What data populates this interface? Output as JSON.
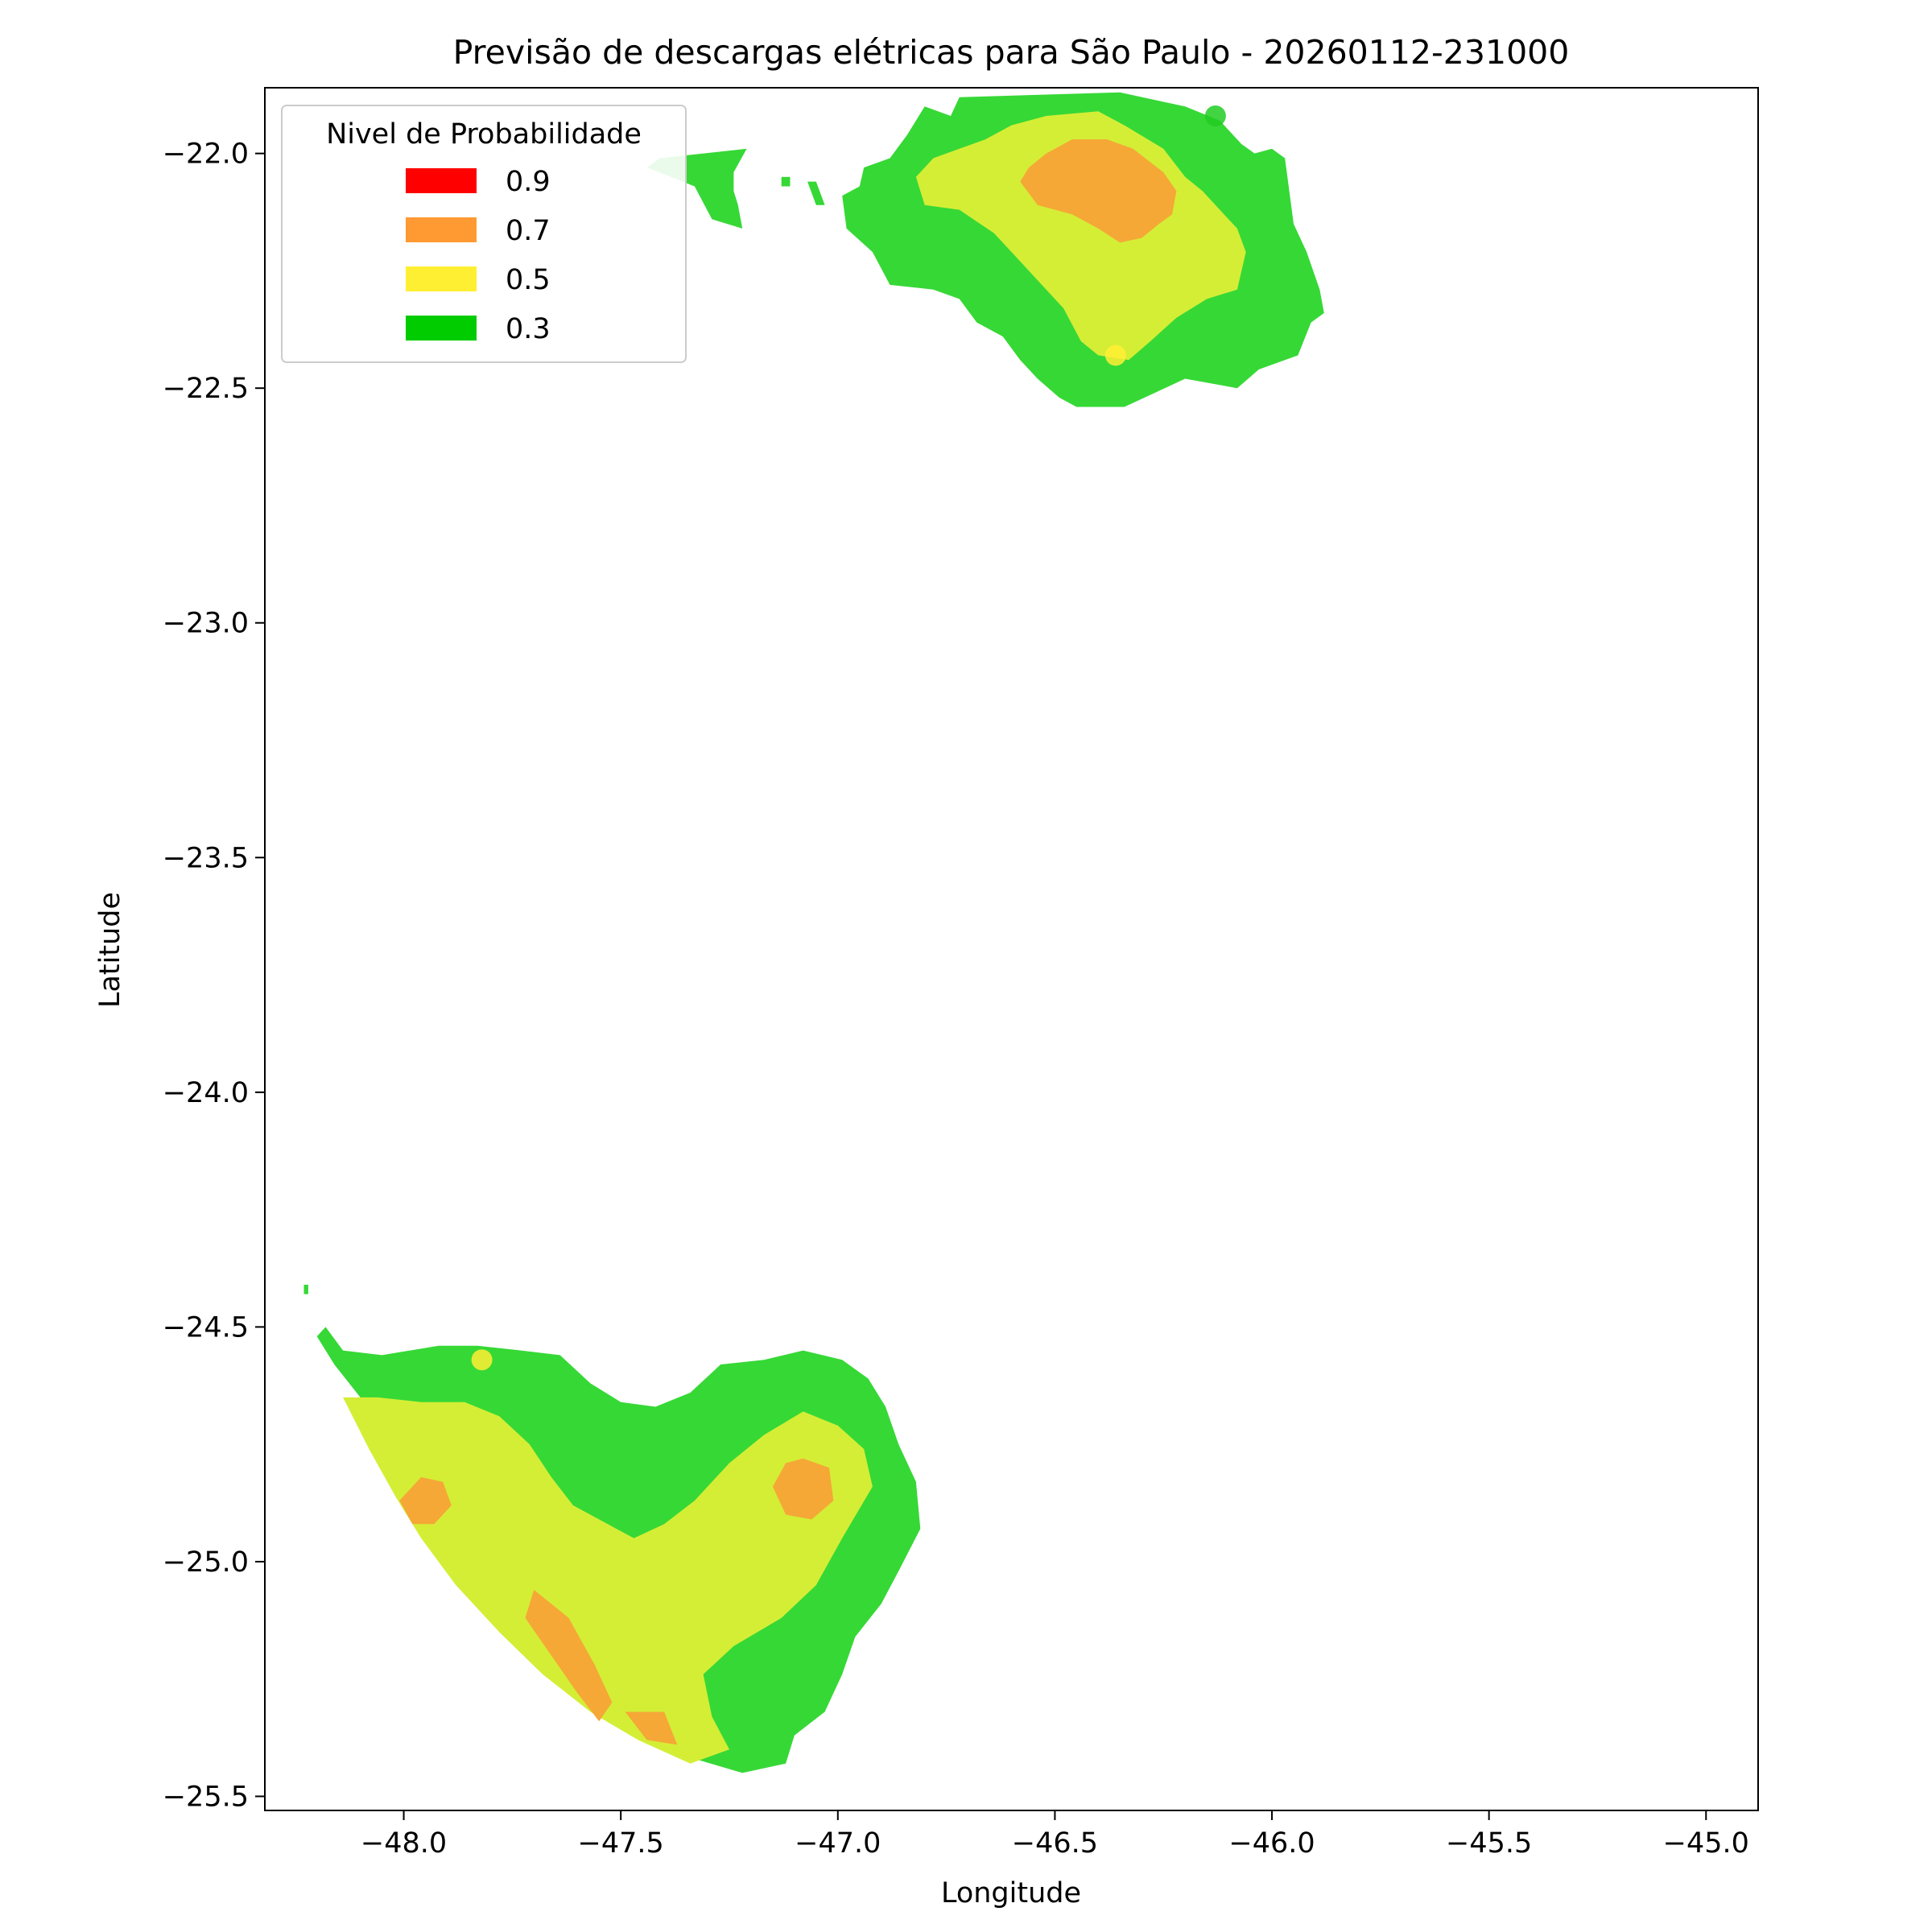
{
  "chart_data": {
    "type": "contour-map",
    "title": "Previsão de descargas elétricas para São Paulo - 20260112-231000",
    "xlabel": "Longitude",
    "ylabel": "Latitude",
    "xlim": [
      -48.32,
      -44.88
    ],
    "ylim": [
      -25.53,
      -21.86
    ],
    "x_ticks": [
      -48.0,
      -47.5,
      -47.0,
      -46.5,
      -46.0,
      -45.5,
      -45.0
    ],
    "x_tick_labels": [
      "−48.0",
      "−47.5",
      "−47.0",
      "−46.5",
      "−46.0",
      "−45.5",
      "−45.0"
    ],
    "y_ticks": [
      -22.0,
      -22.5,
      -23.0,
      -23.5,
      -24.0,
      -24.5,
      -25.0,
      -25.5
    ],
    "y_tick_labels": [
      "−22.0",
      "−22.5",
      "−23.0",
      "−23.5",
      "−24.0",
      "−24.5",
      "−25.0",
      "−25.5"
    ],
    "grid": false,
    "legend": {
      "title": "Nivel de Probabilidade",
      "placement": "upper-left",
      "entries": [
        {
          "label": "0.9",
          "color": "#ff0000"
        },
        {
          "label": "0.7",
          "color": "#ff9a33"
        },
        {
          "label": "0.5",
          "color": "#ffef33"
        },
        {
          "label": "0.3",
          "color": "#00cc00"
        }
      ]
    },
    "fill_colors": {
      "0.3": "#36d836",
      "0.5": "#d4ee36",
      "0.7": "#f5a836"
    },
    "regions": [
      {
        "name": "north-cluster",
        "levels": [
          {
            "level": "0.3",
            "polygon": [
              [
                -47.24,
                -22.04
              ],
              [
                -47.21,
                -21.99
              ],
              [
                -47.41,
                -22.01
              ],
              [
                -47.44,
                -22.03
              ],
              [
                -47.33,
                -22.07
              ],
              [
                -47.29,
                -22.14
              ],
              [
                -47.22,
                -22.16
              ],
              [
                -47.23,
                -22.11
              ],
              [
                -47.24,
                -22.08
              ]
            ]
          },
          {
            "level": "0.3",
            "polygon": [
              [
                -46.95,
                -22.07
              ],
              [
                -46.94,
                -22.03
              ],
              [
                -46.88,
                -22.01
              ],
              [
                -46.84,
                -21.96
              ],
              [
                -46.8,
                -21.9
              ],
              [
                -46.74,
                -21.92
              ],
              [
                -46.72,
                -21.88
              ],
              [
                -46.35,
                -21.87
              ],
              [
                -46.2,
                -21.9
              ],
              [
                -46.12,
                -21.93
              ],
              [
                -46.07,
                -21.98
              ],
              [
                -46.04,
                -22.0
              ],
              [
                -46.0,
                -21.99
              ],
              [
                -45.97,
                -22.01
              ],
              [
                -45.95,
                -22.15
              ],
              [
                -45.92,
                -22.21
              ],
              [
                -45.89,
                -22.29
              ],
              [
                -45.88,
                -22.34
              ],
              [
                -45.91,
                -22.36
              ],
              [
                -45.94,
                -22.43
              ],
              [
                -46.03,
                -22.46
              ],
              [
                -46.08,
                -22.5
              ],
              [
                -46.2,
                -22.48
              ],
              [
                -46.27,
                -22.51
              ],
              [
                -46.34,
                -22.54
              ],
              [
                -46.45,
                -22.54
              ],
              [
                -46.49,
                -22.52
              ],
              [
                -46.54,
                -22.48
              ],
              [
                -46.58,
                -22.44
              ],
              [
                -46.62,
                -22.39
              ],
              [
                -46.68,
                -22.36
              ],
              [
                -46.72,
                -22.31
              ],
              [
                -46.78,
                -22.29
              ],
              [
                -46.88,
                -22.28
              ],
              [
                -46.92,
                -22.21
              ],
              [
                -46.98,
                -22.16
              ],
              [
                -46.99,
                -22.09
              ]
            ]
          },
          {
            "level": "0.3",
            "polygon": [
              [
                -47.13,
                -22.05
              ],
              [
                -47.11,
                -22.05
              ],
              [
                -47.11,
                -22.07
              ],
              [
                -47.13,
                -22.07
              ]
            ]
          },
          {
            "level": "0.3",
            "polygon": [
              [
                -47.07,
                -22.06
              ],
              [
                -47.05,
                -22.06
              ],
              [
                -47.03,
                -22.11
              ],
              [
                -47.05,
                -22.11
              ]
            ]
          },
          {
            "level": "0.5",
            "polygon": [
              [
                -46.82,
                -22.05
              ],
              [
                -46.78,
                -22.01
              ],
              [
                -46.72,
                -21.99
              ],
              [
                -46.66,
                -21.97
              ],
              [
                -46.6,
                -21.94
              ],
              [
                -46.52,
                -21.92
              ],
              [
                -46.4,
                -21.91
              ],
              [
                -46.34,
                -21.94
              ],
              [
                -46.25,
                -21.99
              ],
              [
                -46.2,
                -22.05
              ],
              [
                -46.16,
                -22.08
              ],
              [
                -46.12,
                -22.12
              ],
              [
                -46.08,
                -22.16
              ],
              [
                -46.06,
                -22.21
              ],
              [
                -46.08,
                -22.29
              ],
              [
                -46.15,
                -22.31
              ],
              [
                -46.22,
                -22.35
              ],
              [
                -46.28,
                -22.4
              ],
              [
                -46.33,
                -22.44
              ],
              [
                -46.4,
                -22.43
              ],
              [
                -46.44,
                -22.4
              ],
              [
                -46.48,
                -22.33
              ],
              [
                -46.54,
                -22.27
              ],
              [
                -46.59,
                -22.22
              ],
              [
                -46.64,
                -22.17
              ],
              [
                -46.72,
                -22.12
              ],
              [
                -46.8,
                -22.11
              ]
            ]
          },
          {
            "level": "0.7",
            "polygon": [
              [
                -46.56,
                -22.03
              ],
              [
                -46.52,
                -22.0
              ],
              [
                -46.46,
                -21.97
              ],
              [
                -46.38,
                -21.97
              ],
              [
                -46.32,
                -21.99
              ],
              [
                -46.25,
                -22.04
              ],
              [
                -46.22,
                -22.08
              ],
              [
                -46.23,
                -22.13
              ],
              [
                -46.26,
                -22.15
              ],
              [
                -46.3,
                -22.18
              ],
              [
                -46.35,
                -22.19
              ],
              [
                -46.4,
                -22.16
              ],
              [
                -46.46,
                -22.13
              ],
              [
                -46.54,
                -22.11
              ],
              [
                -46.58,
                -22.06
              ]
            ]
          }
        ]
      },
      {
        "name": "south-cluster",
        "levels": [
          {
            "level": "0.3",
            "polygon": [
              [
                -48.2,
                -24.52
              ],
              [
                -48.16,
                -24.58
              ],
              [
                -48.1,
                -24.65
              ],
              [
                -48.05,
                -24.74
              ],
              [
                -48.0,
                -24.82
              ],
              [
                -47.93,
                -24.93
              ],
              [
                -47.85,
                -25.03
              ],
              [
                -47.75,
                -25.14
              ],
              [
                -47.65,
                -25.23
              ],
              [
                -47.55,
                -25.31
              ],
              [
                -47.44,
                -25.37
              ],
              [
                -47.33,
                -25.42
              ],
              [
                -47.22,
                -25.45
              ],
              [
                -47.12,
                -25.43
              ],
              [
                -47.1,
                -25.37
              ],
              [
                -47.03,
                -25.32
              ],
              [
                -46.99,
                -25.24
              ],
              [
                -46.96,
                -25.16
              ],
              [
                -46.9,
                -25.09
              ],
              [
                -46.86,
                -25.02
              ],
              [
                -46.81,
                -24.93
              ],
              [
                -46.82,
                -24.83
              ],
              [
                -46.86,
                -24.75
              ],
              [
                -46.89,
                -24.67
              ],
              [
                -46.93,
                -24.61
              ],
              [
                -46.99,
                -24.57
              ],
              [
                -47.08,
                -24.55
              ],
              [
                -47.17,
                -24.57
              ],
              [
                -47.27,
                -24.58
              ],
              [
                -47.34,
                -24.64
              ],
              [
                -47.42,
                -24.67
              ],
              [
                -47.5,
                -24.66
              ],
              [
                -47.57,
                -24.62
              ],
              [
                -47.64,
                -24.56
              ],
              [
                -47.73,
                -24.55
              ],
              [
                -47.83,
                -24.54
              ],
              [
                -47.92,
                -24.54
              ],
              [
                -48.05,
                -24.56
              ],
              [
                -48.14,
                -24.55
              ],
              [
                -48.18,
                -24.5
              ]
            ]
          },
          {
            "level": "0.3",
            "polygon": [
              [
                -48.23,
                -24.41
              ],
              [
                -48.22,
                -24.41
              ],
              [
                -48.22,
                -24.43
              ],
              [
                -48.23,
                -24.43
              ]
            ]
          },
          {
            "level": "0.5",
            "polygon": [
              [
                -48.14,
                -24.65
              ],
              [
                -48.08,
                -24.76
              ],
              [
                -48.02,
                -24.86
              ],
              [
                -47.96,
                -24.95
              ],
              [
                -47.88,
                -25.05
              ],
              [
                -47.78,
                -25.15
              ],
              [
                -47.68,
                -25.24
              ],
              [
                -47.57,
                -25.32
              ],
              [
                -47.46,
                -25.38
              ],
              [
                -47.34,
                -25.43
              ],
              [
                -47.25,
                -25.4
              ],
              [
                -47.29,
                -25.33
              ],
              [
                -47.31,
                -25.24
              ],
              [
                -47.24,
                -25.18
              ],
              [
                -47.13,
                -25.12
              ],
              [
                -47.05,
                -25.05
              ],
              [
                -46.99,
                -24.95
              ],
              [
                -46.92,
                -24.84
              ],
              [
                -46.94,
                -24.76
              ],
              [
                -47.0,
                -24.71
              ],
              [
                -47.08,
                -24.68
              ],
              [
                -47.17,
                -24.73
              ],
              [
                -47.25,
                -24.79
              ],
              [
                -47.33,
                -24.87
              ],
              [
                -47.4,
                -24.92
              ],
              [
                -47.47,
                -24.95
              ],
              [
                -47.53,
                -24.92
              ],
              [
                -47.61,
                -24.88
              ],
              [
                -47.66,
                -24.82
              ],
              [
                -47.71,
                -24.75
              ],
              [
                -47.78,
                -24.69
              ],
              [
                -47.86,
                -24.66
              ],
              [
                -47.96,
                -24.66
              ],
              [
                -48.06,
                -24.65
              ]
            ]
          },
          {
            "level": "0.7",
            "polygon": [
              [
                -47.96,
                -24.82
              ],
              [
                -47.91,
                -24.83
              ],
              [
                -47.89,
                -24.88
              ],
              [
                -47.93,
                -24.92
              ],
              [
                -47.98,
                -24.92
              ],
              [
                -48.01,
                -24.87
              ]
            ]
          },
          {
            "level": "0.7",
            "polygon": [
              [
                -47.08,
                -24.78
              ],
              [
                -47.02,
                -24.8
              ],
              [
                -47.01,
                -24.87
              ],
              [
                -47.06,
                -24.91
              ],
              [
                -47.12,
                -24.9
              ],
              [
                -47.15,
                -24.84
              ],
              [
                -47.12,
                -24.79
              ]
            ]
          },
          {
            "level": "0.7",
            "polygon": [
              [
                -47.7,
                -25.06
              ],
              [
                -47.62,
                -25.12
              ],
              [
                -47.56,
                -25.22
              ],
              [
                -47.52,
                -25.3
              ],
              [
                -47.55,
                -25.34
              ],
              [
                -47.6,
                -25.28
              ],
              [
                -47.66,
                -25.2
              ],
              [
                -47.72,
                -25.12
              ]
            ]
          },
          {
            "level": "0.7",
            "polygon": [
              [
                -47.49,
                -25.32
              ],
              [
                -47.4,
                -25.32
              ],
              [
                -47.37,
                -25.39
              ],
              [
                -47.44,
                -25.38
              ]
            ]
          }
        ]
      }
    ],
    "points": [
      {
        "x": -46.13,
        "y": -21.92,
        "color": "#22cc22"
      },
      {
        "x": -46.36,
        "y": -22.43,
        "color": "#ffef33"
      },
      {
        "x": -47.82,
        "y": -24.57,
        "color": "#ffef33"
      }
    ]
  }
}
